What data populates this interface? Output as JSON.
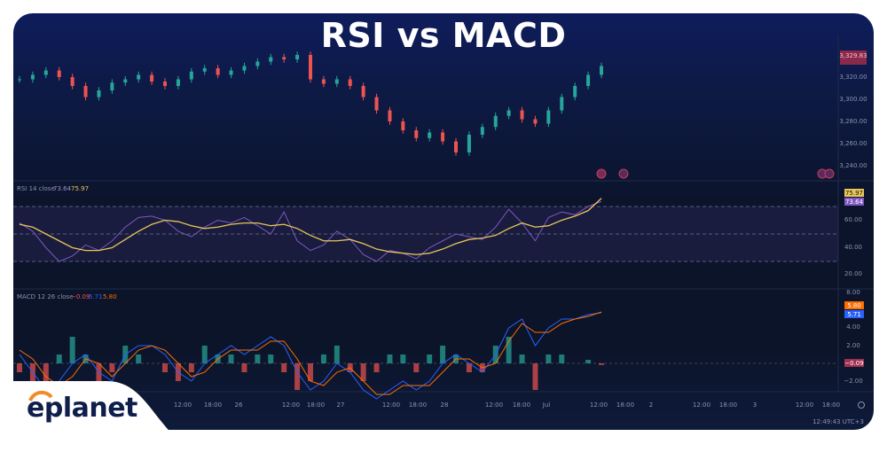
{
  "header": {
    "title": "RSI vs MACD"
  },
  "brand": {
    "name": "eplanet",
    "accent": "#f28c28",
    "text_color": "#0f1e4a"
  },
  "colors": {
    "up": "#26a69a",
    "down": "#ef5350",
    "rsi": "#7e57c2",
    "rsi_ma": "#e8c65a",
    "macd": "#2962ff",
    "signal": "#ff6d00"
  },
  "price_axis": {
    "labels": [
      "3,320.00",
      "3,300.00",
      "3,280.00",
      "3,260.00",
      "3,240.00"
    ],
    "last_price": "3,329.83"
  },
  "rsi_pane": {
    "legend": "RSI 14 close",
    "value": "73.64",
    "ma_value": "75.97",
    "labels": [
      "60.00",
      "40.00",
      "20.00"
    ]
  },
  "macd_pane": {
    "legend": "MACD 12 26 close",
    "hist": "−0.09",
    "macd": "5.71",
    "signal": "5.80",
    "labels": [
      "8.00",
      "4.00",
      "2.00",
      "−2.00"
    ]
  },
  "time_axis": {
    "labels": [
      "12:00",
      "18:00",
      "26",
      "12:00",
      "18:00",
      "27",
      "12:00",
      "18:00",
      "28",
      "12:00",
      "18:00",
      "Jul",
      "12:00",
      "18:00",
      "2",
      "12:00",
      "18:00",
      "3",
      "12:00",
      "18:00"
    ]
  },
  "status": {
    "clock": "12:49:43 UTC+3"
  },
  "chart_data": [
    {
      "type": "candlestick",
      "title": "",
      "ylim": [
        3240,
        3340
      ],
      "close": [
        3318,
        3322,
        3326,
        3320,
        3312,
        3302,
        3308,
        3315,
        3318,
        3322,
        3316,
        3312,
        3318,
        3325,
        3328,
        3322,
        3326,
        3330,
        3334,
        3338,
        3336,
        3340,
        3318,
        3314,
        3318,
        3312,
        3302,
        3290,
        3280,
        3272,
        3265,
        3270,
        3262,
        3252,
        3268,
        3275,
        3285,
        3290,
        3282,
        3278,
        3290,
        3302,
        3312,
        3322,
        3330
      ]
    },
    {
      "type": "line",
      "title": "RSI 14 close",
      "ylim": [
        10,
        85
      ],
      "bands": [
        30,
        50,
        70
      ],
      "series": [
        {
          "name": "RSI",
          "values": [
            58,
            52,
            40,
            30,
            34,
            42,
            38,
            45,
            55,
            62,
            63,
            60,
            52,
            48,
            55,
            60,
            58,
            62,
            56,
            50,
            66,
            45,
            38,
            42,
            52,
            46,
            35,
            30,
            38,
            36,
            32,
            40,
            45,
            50,
            48,
            46,
            55,
            68,
            58,
            45,
            62,
            66,
            64,
            70,
            73.64
          ]
        },
        {
          "name": "RSI MA",
          "values": [
            57,
            55,
            50,
            45,
            40,
            38,
            38,
            40,
            46,
            52,
            57,
            60,
            59,
            56,
            54,
            55,
            57,
            58,
            58,
            56,
            57,
            54,
            49,
            45,
            45,
            46,
            43,
            39,
            37,
            36,
            35,
            36,
            39,
            43,
            46,
            47,
            49,
            54,
            58,
            55,
            56,
            60,
            63,
            67,
            75.97
          ]
        }
      ]
    },
    {
      "type": "line",
      "title": "MACD 12 26 close",
      "ylim": [
        -4,
        9
      ],
      "series": [
        {
          "name": "MACD",
          "values": [
            1,
            -1,
            -3,
            -2,
            0,
            1,
            -1,
            -2,
            1,
            2,
            2,
            1,
            -1,
            -2,
            0,
            1,
            2,
            1,
            2,
            3,
            2,
            -1,
            -3,
            -2,
            0,
            -1,
            -3,
            -4,
            -3,
            -2,
            -3,
            -2,
            0,
            1,
            0,
            -1,
            1,
            4,
            5,
            2,
            4,
            5,
            5,
            5.5,
            5.71
          ]
        },
        {
          "name": "Signal",
          "values": [
            1.5,
            0.5,
            -1.5,
            -2.5,
            -1.5,
            0.5,
            0,
            -1.5,
            0,
            1.5,
            2,
            1.5,
            0,
            -1.5,
            -1,
            0.5,
            1.5,
            1.5,
            1.5,
            2.5,
            2.5,
            0.5,
            -2,
            -2.5,
            -1,
            -0.5,
            -2,
            -3.5,
            -3.5,
            -2.5,
            -2.5,
            -2.5,
            -1,
            0.5,
            0.5,
            -0.5,
            0,
            2.5,
            4.5,
            3.5,
            3.5,
            4.5,
            5,
            5.3,
            5.8
          ]
        }
      ]
    }
  ]
}
